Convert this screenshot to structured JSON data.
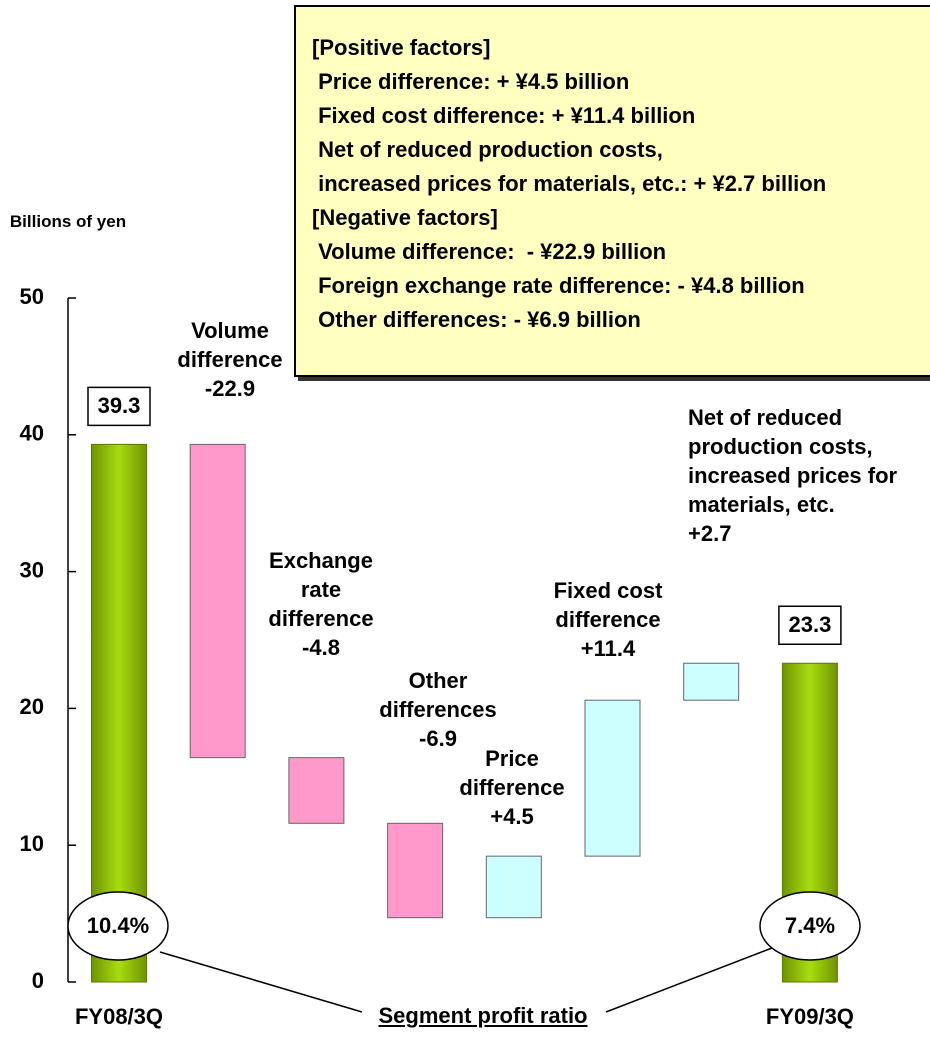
{
  "chart_data": {
    "type": "waterfall",
    "y_axis_label": "Billions of yen",
    "categories": [
      "FY08/3Q",
      "Volume difference",
      "Exchange rate difference",
      "Other differences",
      "Price difference",
      "Fixed cost difference",
      "Net of reduced production costs, increased prices for materials, etc.",
      "FY09/3Q"
    ],
    "values": [
      39.3,
      -22.9,
      -4.8,
      -6.9,
      4.5,
      11.4,
      2.7,
      23.3
    ],
    "value_labels": [
      "39.3",
      "-22.9",
      "-4.8",
      "-6.9",
      "+4.5",
      "+11.4",
      "+2.7",
      "23.3"
    ],
    "measure": [
      "absolute",
      "relative",
      "relative",
      "relative",
      "relative",
      "relative",
      "relative",
      "absolute"
    ],
    "colors": [
      "#99cc00",
      "#ff99cc",
      "#ff99cc",
      "#ff99cc",
      "#ccffff",
      "#ccffff",
      "#ccffff",
      "#99cc00"
    ],
    "ylim": [
      0,
      50
    ],
    "yticks": [
      0,
      10,
      20,
      30,
      40,
      50
    ],
    "profit_ratio_title": "Segment profit ratio",
    "profit_ratio_labels": [
      "10.4%",
      "7.4%"
    ],
    "note_box": [
      "[Positive factors]",
      " Price difference: + ¥4.5 billion",
      " Fixed cost difference: + ¥11.4 billion",
      " Net of reduced production costs,",
      " increased prices for materials, etc.: + ¥2.7 billion",
      "[Negative factors]",
      " Volume difference:  - ¥22.9 billion",
      " Foreign exchange rate difference: - ¥4.8 billion",
      " Other differences: - ¥6.9 billion"
    ]
  }
}
